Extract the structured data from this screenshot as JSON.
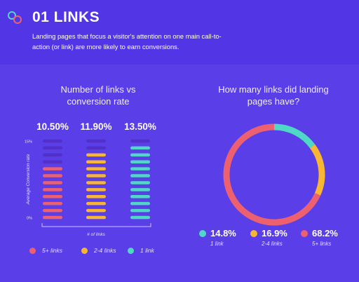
{
  "header": {
    "title": "01 LINKS",
    "subtitle": "Landing pages that focus a visitor's attention on one main call-to-action (or link) are more likely to earn conversions."
  },
  "colors": {
    "background": "#5a3fe9",
    "header": "#5236e6",
    "five_plus": "#ec6070",
    "two_to_four": "#f8b632",
    "one": "#4fd8c6",
    "inactive": "#5230c8"
  },
  "legend": [
    {
      "label": "5+ links",
      "color": "#ec6070"
    },
    {
      "label": "2-4 links",
      "color": "#f8b632"
    },
    {
      "label": "1 link",
      "color": "#4fd8c6"
    }
  ],
  "chart_data": [
    {
      "type": "bar",
      "title": "Number of links vs conversion rate",
      "xlabel": "# of links",
      "ylabel": "Average Conversion rate",
      "ytick_labels": [
        "15%",
        "0%"
      ],
      "ylim": [
        0,
        15
      ],
      "categories": [
        "5+ links",
        "2-4 links",
        "1 link"
      ],
      "values": [
        10.5,
        11.9,
        13.5
      ],
      "value_labels": [
        "10.50%",
        "11.90%",
        "13.50%"
      ],
      "segments_total": 12,
      "colors": [
        "#ec6070",
        "#f8b632",
        "#4fd8c6"
      ]
    },
    {
      "type": "pie",
      "title": "How many links did landing pages have?",
      "slices": [
        {
          "name": "1 link",
          "value": 14.8,
          "label": "14.8%",
          "color": "#4fd8c6"
        },
        {
          "name": "2-4 links",
          "value": 16.9,
          "label": "16.9%",
          "color": "#f8b632"
        },
        {
          "name": "5+ links",
          "value": 68.2,
          "label": "68.2%",
          "color": "#ec6070"
        }
      ]
    }
  ]
}
